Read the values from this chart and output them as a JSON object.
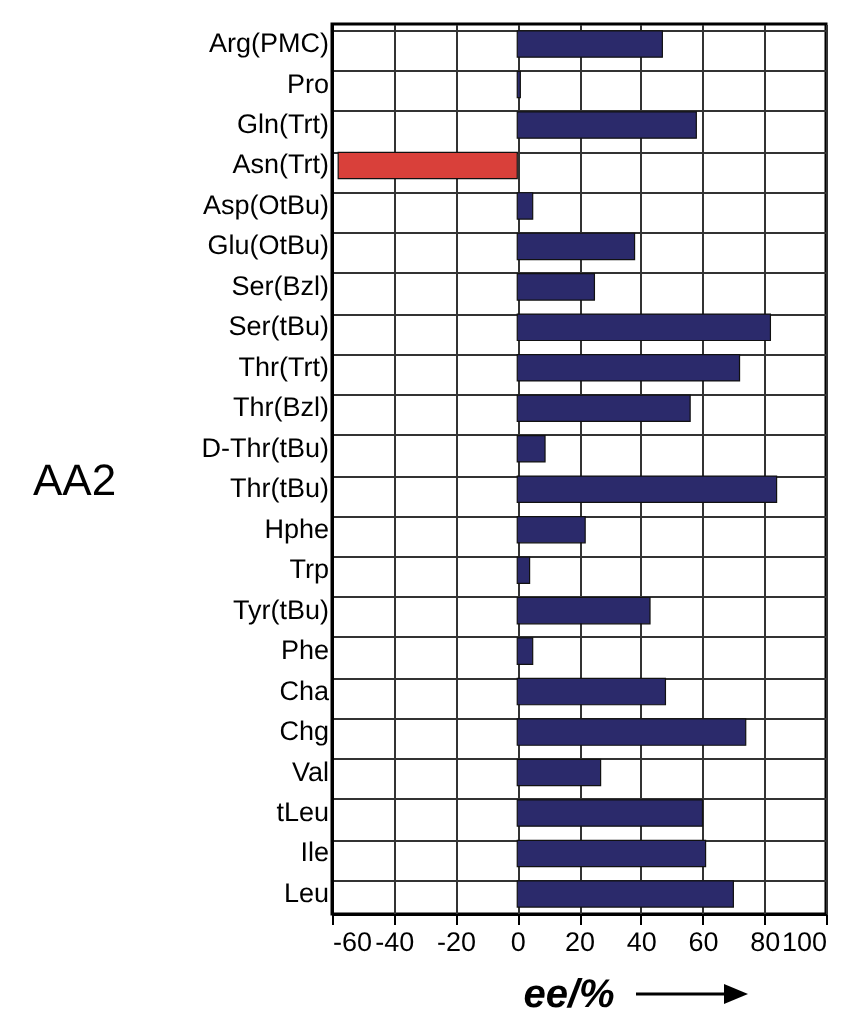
{
  "chart_data": {
    "type": "bar",
    "orientation": "horizontal",
    "ylabel": "AA2",
    "xlabel": "ee/%",
    "categories": [
      "Arg(PMC)",
      "Pro",
      "Gln(Trt)",
      "Asn(Trt)",
      "Asp(OtBu)",
      "Glu(OtBu)",
      "Ser(Bzl)",
      "Ser(tBu)",
      "Thr(Trt)",
      "Thr(Bzl)",
      "D-Thr(tBu)",
      "Thr(tBu)",
      "Hphe",
      "Trp",
      "Tyr(tBu)",
      "Phe",
      "Cha",
      "Chg",
      "Val",
      "tLeu",
      "Ile",
      "Leu"
    ],
    "values": [
      47,
      1,
      58,
      -58,
      5,
      38,
      25,
      82,
      72,
      56,
      9,
      84,
      22,
      4,
      43,
      5,
      48,
      74,
      27,
      60,
      61,
      70
    ],
    "colors": [
      "#2b2a6b",
      "#2b2a6b",
      "#2b2a6b",
      "#d9403a",
      "#2b2a6b",
      "#2b2a6b",
      "#2b2a6b",
      "#2b2a6b",
      "#2b2a6b",
      "#2b2a6b",
      "#2b2a6b",
      "#2b2a6b",
      "#2b2a6b",
      "#2b2a6b",
      "#2b2a6b",
      "#2b2a6b",
      "#2b2a6b",
      "#2b2a6b",
      "#2b2a6b",
      "#2b2a6b",
      "#2b2a6b",
      "#2b2a6b"
    ],
    "xlim": [
      -60,
      100
    ],
    "xticks": [
      -60,
      -40,
      -20,
      0,
      20,
      40,
      60,
      80,
      100
    ],
    "grid": true
  }
}
